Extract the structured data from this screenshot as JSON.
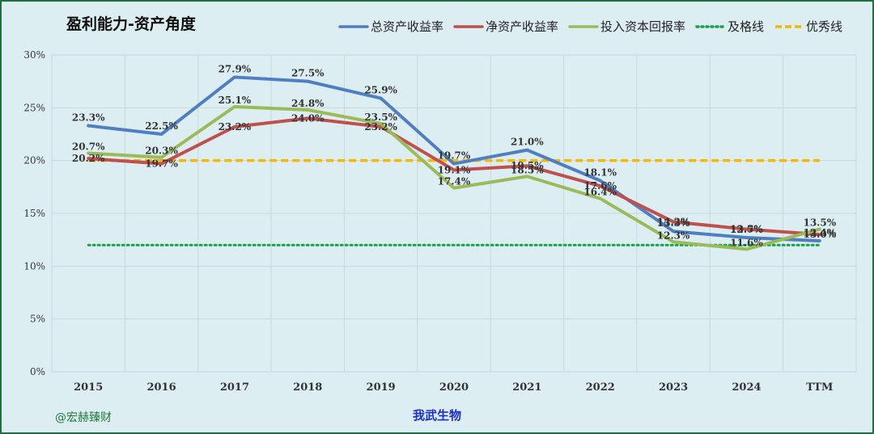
{
  "chart_data": {
    "type": "line",
    "title": "盈利能力-资产角度",
    "categories": [
      "2015",
      "2016",
      "2017",
      "2018",
      "2019",
      "2020",
      "2021",
      "2022",
      "2023",
      "2024",
      "TTM"
    ],
    "ylim": [
      0,
      30
    ],
    "yticks": [
      0,
      5,
      10,
      15,
      20,
      25,
      30
    ],
    "ytick_format": "%",
    "grid": "both",
    "legend_position": "top-right",
    "series": [
      {
        "name": "总资产收益率",
        "color": "#4f7fc1",
        "values": [
          23.3,
          22.5,
          27.9,
          27.5,
          25.9,
          19.7,
          21.0,
          18.1,
          13.3,
          12.7,
          12.4
        ]
      },
      {
        "name": "净资产收益率",
        "color": "#c0504d",
        "values": [
          20.2,
          19.7,
          23.2,
          24.0,
          23.2,
          19.1,
          19.5,
          17.6,
          14.2,
          13.5,
          13.0
        ]
      },
      {
        "name": "投入资本回报率",
        "color": "#9bbb59",
        "values": [
          20.7,
          20.3,
          25.1,
          24.8,
          23.5,
          17.4,
          18.5,
          16.4,
          12.3,
          11.6,
          13.5
        ]
      }
    ],
    "reference_lines": [
      {
        "name": "及格线",
        "color": "#16a34a",
        "value": 12,
        "style": "dotted"
      },
      {
        "name": "优秀线",
        "color": "#f5b800",
        "value": 20,
        "style": "dashed"
      }
    ]
  },
  "footer": {
    "credit": "@宏赫臻财",
    "company": "我武生物"
  }
}
